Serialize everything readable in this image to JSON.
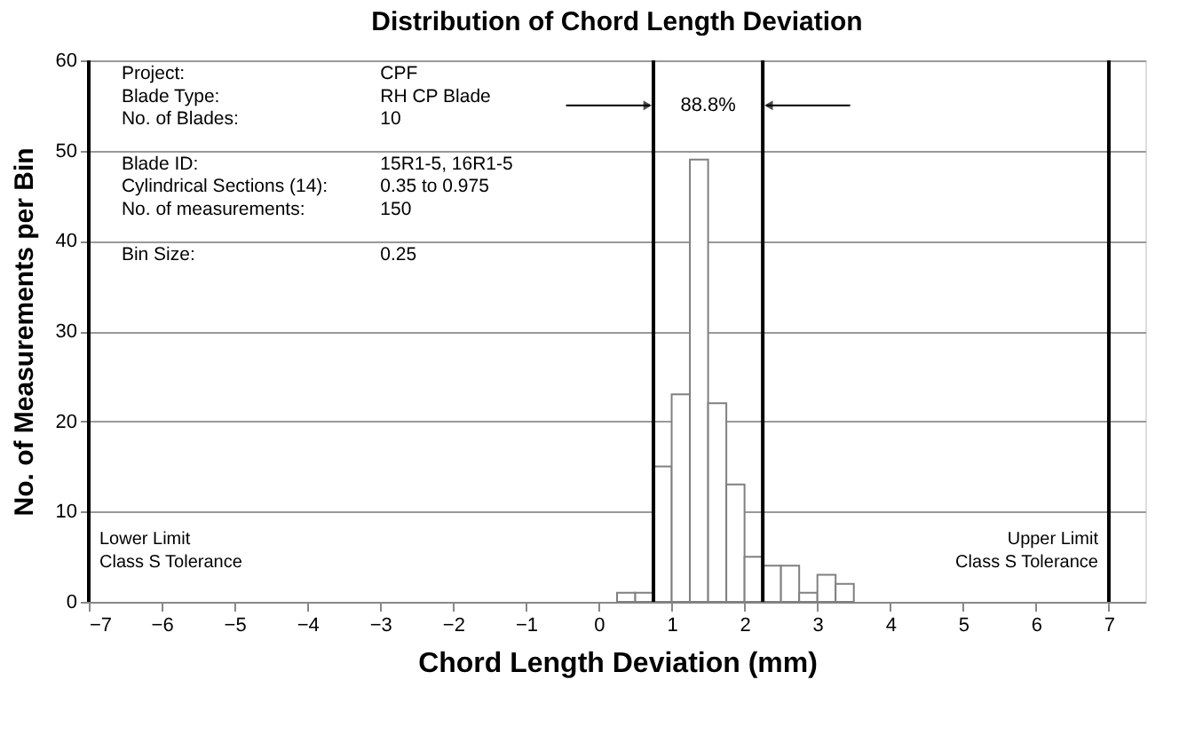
{
  "chart_data": {
    "type": "histogram",
    "title": "Distribution of Chord Length Deviation",
    "xlabel": "Chord Length Deviation (mm)",
    "ylabel": "No. of Measurements per Bin",
    "bins": [
      0.25,
      0.5,
      0.75,
      1.0,
      1.25,
      1.5,
      1.75,
      2.0,
      2.25,
      2.5,
      2.75,
      3.0,
      3.25,
      3.5
    ],
    "values": [
      1,
      1,
      15,
      23,
      49,
      22,
      13,
      5,
      4,
      4,
      1,
      3,
      2
    ],
    "color": "#ffffff",
    "xlim": [
      -7,
      7.5
    ],
    "xticks": [
      -7,
      -6,
      -5,
      -4,
      -3,
      -2,
      -1,
      0,
      1,
      2,
      3,
      4,
      5,
      6,
      7
    ],
    "ylim": [
      0,
      60
    ],
    "yticks": [
      0,
      10,
      20,
      30,
      40,
      50,
      60
    ],
    "grid": "y",
    "ref_lines": [
      {
        "axis": "x",
        "value": -7,
        "label": "Lower Limit\nClass S Tolerance",
        "color": "#000000"
      },
      {
        "axis": "x",
        "value": 7,
        "label": "Upper Limit\nClass S Tolerance",
        "color": "#000000"
      },
      {
        "axis": "x",
        "value": 0.75,
        "color": "#000000"
      },
      {
        "axis": "x",
        "value": 2.25,
        "color": "#000000"
      }
    ],
    "annotations": [
      "88.8%",
      "Project:",
      "CPF",
      "Blade Type:",
      "RH CP Blade",
      "No. of Blades:",
      "10",
      "Blade ID:",
      "15R1-5, 16R1-5",
      "Cylindrical Sections (14):",
      "0.35 to 0.975",
      "No. of measurements:",
      "150",
      "Bin Size:",
      "0.25"
    ]
  }
}
